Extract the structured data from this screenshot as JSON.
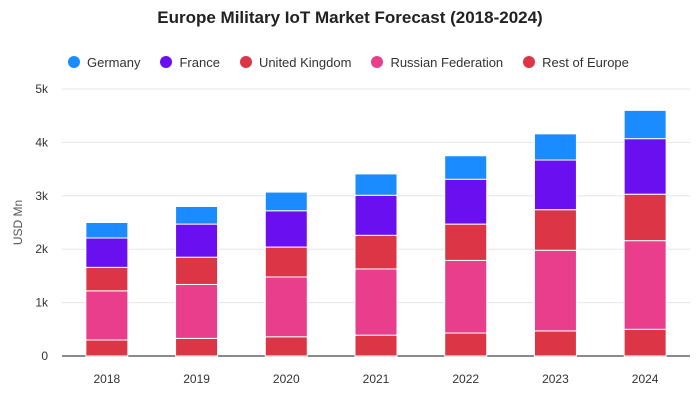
{
  "chart_data": {
    "type": "bar",
    "stacked": true,
    "title": "Europe Military IoT Market Forecast (2018-2024)",
    "xlabel": "",
    "ylabel": "USD Mn",
    "ylim": [
      0,
      5000
    ],
    "yticks": [
      0,
      1000,
      2000,
      3000,
      4000,
      5000
    ],
    "ytick_labels": [
      "0",
      "1k",
      "2k",
      "3k",
      "4k",
      "5k"
    ],
    "categories": [
      "2018",
      "2019",
      "2020",
      "2021",
      "2022",
      "2023",
      "2024"
    ],
    "legend_position": "top",
    "grid": true,
    "stack_order_bottom_to_top": [
      "Rest of Europe",
      "Russian Federation",
      "United Kingdom",
      "France",
      "Germany"
    ],
    "series": [
      {
        "name": "Germany",
        "color": "#1a8cff",
        "values": [
          290,
          330,
          350,
          400,
          440,
          490,
          530
        ]
      },
      {
        "name": "France",
        "color": "#6a0ff0",
        "values": [
          550,
          620,
          680,
          750,
          840,
          930,
          1040
        ]
      },
      {
        "name": "United Kingdom",
        "color": "#dc3545",
        "values": [
          440,
          510,
          560,
          630,
          680,
          760,
          870
        ]
      },
      {
        "name": "Russian Federation",
        "color": "#e83e8c",
        "values": [
          920,
          1010,
          1120,
          1240,
          1360,
          1510,
          1660
        ]
      },
      {
        "name": "Rest of Europe",
        "color": "#dc3545",
        "values": [
          300,
          330,
          360,
          390,
          430,
          470,
          500
        ]
      }
    ]
  }
}
